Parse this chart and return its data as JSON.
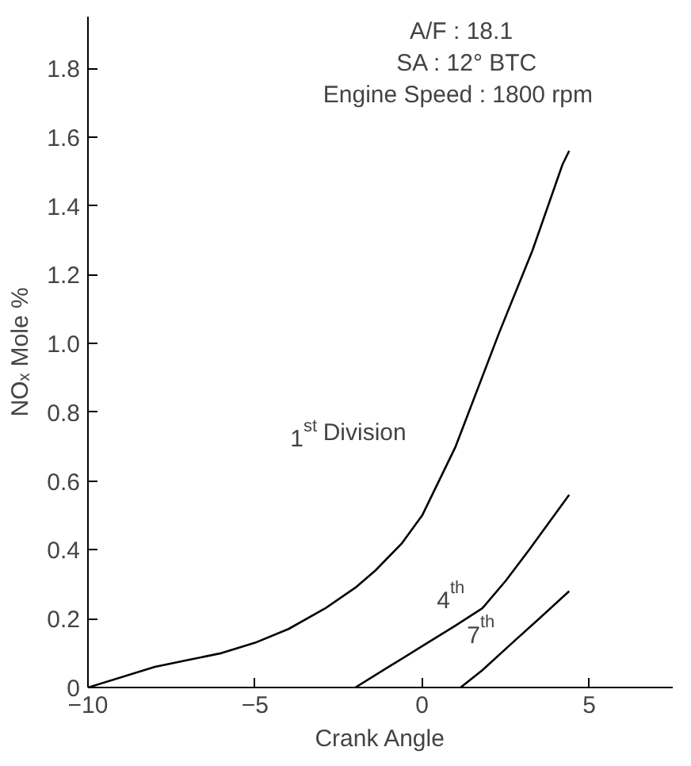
{
  "chart_data": {
    "type": "line",
    "xlabel": "Crank Angle",
    "ylabel": "NOₓ Mole %",
    "xlim": [
      -10,
      7.5
    ],
    "ylim": [
      0,
      1.95
    ],
    "xticks": [
      -10,
      -5,
      0,
      5
    ],
    "yticks": [
      0,
      {
        "value": 0.2,
        "label": "0.2"
      },
      {
        "value": 0.4,
        "label": "0.4"
      },
      {
        "value": 0.6,
        "label": "0.6"
      },
      {
        "value": 0.8,
        "label": "0.8"
      },
      {
        "value": 1.0,
        "label": "1.0"
      },
      {
        "value": 1.2,
        "label": "1.2"
      },
      {
        "value": 1.4,
        "label": "1.4"
      },
      {
        "value": 1.6,
        "label": "1.6"
      },
      {
        "value": 1.8,
        "label": "1.8"
      }
    ],
    "grid": false,
    "legend": false,
    "marker": "none",
    "line_style": "solid",
    "series": [
      {
        "name": "1$^{st}$ Division",
        "color": "#000000",
        "x": [
          -10,
          -8,
          -7,
          -6,
          -5,
          -4,
          -2.9,
          -2,
          -1.4,
          -0.6,
          0,
          1,
          2.3,
          3.3,
          4.2,
          4.4
        ],
        "values": [
          0,
          0.06,
          0.08,
          0.1,
          0.13,
          0.17,
          0.23,
          0.29,
          0.34,
          0.42,
          0.5,
          0.7,
          1.03,
          1.27,
          1.52,
          1.56
        ]
      },
      {
        "name": "4$^{th}$",
        "color": "#000000",
        "x": [
          -2,
          -1,
          0,
          1,
          1.8,
          2.5,
          3.2,
          3.8,
          4.4
        ],
        "values": [
          0,
          0.06,
          0.12,
          0.18,
          0.23,
          0.31,
          0.4,
          0.48,
          0.56
        ]
      },
      {
        "name": "7$^{th}$",
        "color": "#000000",
        "x": [
          1.15,
          1.8,
          2.7,
          3.5,
          4.4
        ],
        "values": [
          0,
          0.05,
          0.13,
          0.2,
          0.28
        ]
      }
    ],
    "annotations": [
      "A/F : 18.1",
      "SA : 12° BTC",
      "Engine Speed : 1800 rpm"
    ]
  }
}
